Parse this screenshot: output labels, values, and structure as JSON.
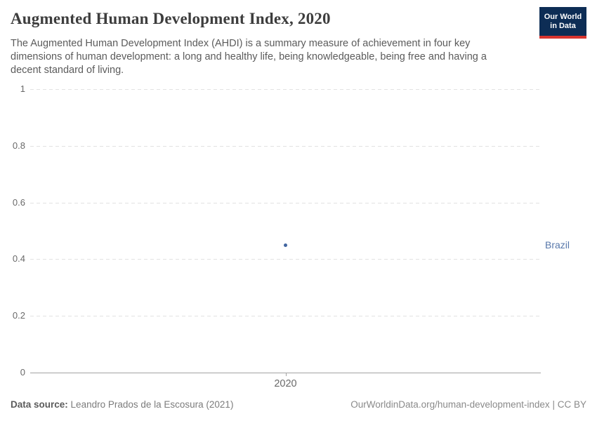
{
  "header": {
    "title": "Augmented Human Development Index, 2020",
    "subtitle": "The Augmented Human Development Index (AHDI) is a summary measure of achievement in four key dimensions of human development: a long and healthy life, being knowledgeable, being free and having a decent standard of living.",
    "logo": {
      "line1": "Our World",
      "line2": "in Data",
      "bg_color": "#0d2d55",
      "stripe_color": "#d8352f"
    }
  },
  "chart_data": {
    "type": "scatter",
    "x": [
      2020
    ],
    "xticks": [
      "2020"
    ],
    "categories": [
      "2020"
    ],
    "series": [
      {
        "name": "Brazil",
        "values": [
          0.45
        ]
      }
    ],
    "title": "Augmented Human Development Index, 2020",
    "xlabel": "",
    "ylabel": "",
    "ylim": [
      0,
      1
    ],
    "yticks": [
      0,
      0.2,
      0.4,
      0.6,
      0.8,
      1
    ],
    "grid": true,
    "legend_position": "label-right-of-point",
    "point_color": "#4165a0",
    "entity_label_color": "#5878ab",
    "gridline_color": "#e2e2e2",
    "axis_color": "#a3a3a3",
    "tick_label_color": "#696969"
  },
  "footer": {
    "source_label": "Data source:",
    "source_value": "Leandro Prados de la Escosura (2021)",
    "link": "OurWorldinData.org/human-development-index",
    "separator": "|",
    "license": "CC BY"
  }
}
